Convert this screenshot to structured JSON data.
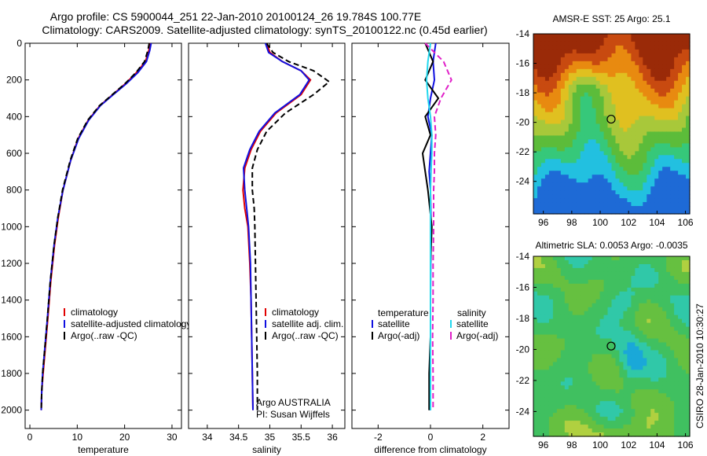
{
  "figure": {
    "title_line1": "Argo profile: CS 5900044_251 22-Jan-2010 20100124_26 19.784S 100.77E",
    "title_line2": "Climatology: CARS2009. Satellite-adjusted climatology: synTS_20100122.nc (0.45d earlier)",
    "credit": "CSIRO 28-Jan-2010 10:30:27",
    "float_id": "5900044",
    "profile_number": "251"
  },
  "colors": {
    "climatology": "#e00000",
    "satellite_temp": "#1010e0",
    "argo": "#000000",
    "satellite_sal": "#22d8ee",
    "argo_adj_sal": "#e020c8"
  },
  "chart_data": [
    {
      "type": "line",
      "name": "temperature",
      "xlabel": "temperature",
      "ylabel": "",
      "xlim": [
        -1,
        32
      ],
      "ylim": [
        2100,
        0
      ],
      "xticks": [
        "0",
        "10",
        "20",
        "30"
      ],
      "xtick_values": [
        0,
        10,
        20,
        30
      ],
      "yticks": [
        "0",
        "200",
        "400",
        "600",
        "800",
        "1000",
        "1200",
        "1400",
        "1600",
        "1800",
        "2000"
      ],
      "ytick_values": [
        0,
        200,
        400,
        600,
        800,
        1000,
        1200,
        1400,
        1600,
        1800,
        2000
      ],
      "legend": [
        "climatology",
        "satellite-adjusted climatology",
        "Argo(..raw -QC)"
      ],
      "series": [
        {
          "name": "climatology",
          "style": "solid",
          "color": "climatology",
          "x": [
            25.4,
            25.1,
            24.4,
            22.5,
            20.2,
            17.5,
            14.8,
            12.3,
            10.2,
            8.6,
            7.0,
            6.0,
            5.2,
            4.4,
            3.8,
            3.3,
            2.8,
            2.5,
            2.4
          ],
          "y": [
            0,
            40,
            100,
            160,
            220,
            280,
            340,
            420,
            520,
            640,
            800,
            950,
            1100,
            1300,
            1500,
            1650,
            1800,
            1900,
            2000
          ]
        },
        {
          "name": "satellite-adjusted climatology",
          "style": "solid",
          "color": "satellite_temp",
          "x": [
            25.6,
            25.3,
            24.6,
            22.8,
            20.4,
            17.6,
            14.9,
            12.4,
            10.3,
            8.6,
            7.0,
            5.9,
            5.1,
            4.3,
            3.7,
            3.2,
            2.7,
            2.5,
            2.4
          ],
          "y": [
            0,
            40,
            100,
            160,
            220,
            280,
            340,
            420,
            520,
            640,
            800,
            950,
            1100,
            1300,
            1500,
            1650,
            1800,
            1900,
            2000
          ]
        },
        {
          "name": "Argo(..raw -QC)",
          "style": "dashed",
          "color": "argo",
          "x": [
            25.2,
            24.9,
            24.2,
            22.4,
            20.1,
            17.4,
            14.7,
            12.2,
            10.1,
            8.5,
            6.9,
            5.9,
            5.1,
            4.3,
            3.7,
            3.2,
            2.7,
            2.5,
            2.4
          ],
          "y": [
            0,
            40,
            100,
            160,
            220,
            280,
            340,
            420,
            520,
            640,
            800,
            950,
            1100,
            1300,
            1500,
            1650,
            1800,
            1900,
            2000
          ]
        }
      ]
    },
    {
      "type": "line",
      "name": "salinity",
      "xlabel": "salinity",
      "xlim": [
        33.7,
        36.2
      ],
      "ylim": [
        2100,
        0
      ],
      "xticks": [
        "34",
        "34.5",
        "35",
        "35.5",
        "36"
      ],
      "xtick_values": [
        34,
        34.5,
        35,
        35.5,
        36
      ],
      "legend": [
        "climatology",
        "satellite adj. clim.",
        "Argo(..raw -QC)"
      ],
      "annotation": [
        "Argo AUSTRALIA",
        "PI: Susan Wijffels"
      ],
      "series": [
        {
          "name": "climatology",
          "style": "solid",
          "color": "climatology",
          "x": [
            34.95,
            35.0,
            35.2,
            35.5,
            35.65,
            35.5,
            35.1,
            34.85,
            34.7,
            34.6,
            34.57,
            34.6,
            34.65,
            34.68,
            34.7,
            34.71,
            34.72,
            34.73
          ],
          "y": [
            0,
            50,
            100,
            150,
            200,
            280,
            380,
            480,
            580,
            680,
            800,
            900,
            1000,
            1200,
            1400,
            1600,
            1800,
            2000
          ]
        },
        {
          "name": "satellite adj. clim.",
          "style": "solid",
          "color": "satellite_temp",
          "x": [
            34.93,
            34.98,
            35.2,
            35.5,
            35.63,
            35.48,
            35.08,
            34.83,
            34.68,
            34.58,
            34.6,
            34.63,
            34.66,
            34.69,
            34.7,
            34.71,
            34.72,
            34.73
          ],
          "y": [
            0,
            50,
            100,
            150,
            200,
            280,
            380,
            480,
            580,
            680,
            800,
            900,
            1000,
            1200,
            1400,
            1600,
            1800,
            2000
          ]
        },
        {
          "name": "Argo(..raw -QC)",
          "style": "dashed",
          "color": "argo",
          "x": [
            34.95,
            35.05,
            35.3,
            35.7,
            35.95,
            35.7,
            35.25,
            34.95,
            34.8,
            34.72,
            34.72,
            34.75,
            34.76,
            34.77,
            34.78,
            34.79,
            34.8,
            34.8
          ],
          "y": [
            0,
            50,
            100,
            150,
            210,
            280,
            380,
            480,
            580,
            680,
            800,
            900,
            1000,
            1200,
            1400,
            1600,
            1800,
            2000
          ]
        }
      ]
    },
    {
      "type": "line",
      "name": "difference",
      "xlabel": "difference from climatology",
      "xlim": [
        -3,
        3
      ],
      "ylim": [
        2100,
        0
      ],
      "xticks": [
        "-2",
        "0",
        "2"
      ],
      "xtick_values": [
        -2,
        0,
        2
      ],
      "legend_temp_header": "temperature",
      "legend_sal_header": "salinity",
      "legend_temp": [
        "satellite",
        "Argo(-adj)"
      ],
      "legend_sal": [
        "satellite",
        "Argo(-adj)"
      ],
      "series": [
        {
          "name": "temperature satellite",
          "style": "solid",
          "color": "satellite_temp",
          "x": [
            0.2,
            0.1,
            0.15,
            0.0,
            -0.1,
            0.05,
            0.0,
            -0.05,
            0.0,
            0.02,
            0.01,
            0.0,
            0.0,
            0.0,
            0.0
          ],
          "y": [
            0,
            100,
            200,
            300,
            400,
            500,
            600,
            700,
            800,
            1000,
            1200,
            1400,
            1600,
            1800,
            2000
          ]
        },
        {
          "name": "temperature Argo(-adj)",
          "style": "solid",
          "color": "argo",
          "x": [
            -0.2,
            0.1,
            -0.2,
            0.3,
            -0.2,
            0.0,
            -0.3,
            -0.2,
            -0.1,
            0.05,
            0.0,
            0.0,
            0.0,
            -0.05,
            -0.05
          ],
          "y": [
            0,
            100,
            200,
            300,
            400,
            500,
            600,
            700,
            800,
            1000,
            1200,
            1400,
            1600,
            1800,
            2000
          ]
        },
        {
          "name": "salinity satellite",
          "style": "solid",
          "color": "satellite_sal",
          "x": [
            0.0,
            -0.1,
            -0.15,
            -0.1,
            0.0,
            0.05,
            0.05,
            0.02,
            0.0,
            0.0,
            0.0,
            0.0,
            0.0,
            0.0,
            0.0
          ],
          "y": [
            0,
            100,
            200,
            300,
            400,
            500,
            600,
            700,
            800,
            1000,
            1200,
            1400,
            1600,
            1800,
            2000
          ]
        },
        {
          "name": "salinity Argo(-adj)",
          "style": "dashed",
          "color": "argo_adj_sal",
          "x": [
            -0.2,
            0.5,
            0.8,
            0.4,
            0.15,
            0.2,
            0.15,
            0.15,
            0.12,
            0.12,
            0.1,
            0.1,
            0.08,
            0.1,
            0.1
          ],
          "y": [
            0,
            100,
            200,
            300,
            400,
            500,
            600,
            700,
            800,
            1000,
            1200,
            1400,
            1600,
            1800,
            2000
          ]
        }
      ]
    },
    {
      "type": "heatmap",
      "name": "sst-map",
      "title": "AMSR-E SST: 25 Argo: 25.1",
      "xlim": [
        95.3,
        106.3
      ],
      "ylim": [
        -26.2,
        -14
      ],
      "xticks": [
        "96",
        "98",
        "100",
        "102",
        "104",
        "106"
      ],
      "xtick_values": [
        96,
        98,
        100,
        102,
        104,
        106
      ],
      "yticks": [
        "-14",
        "-16",
        "-18",
        "-20",
        "-22",
        "-24"
      ],
      "ytick_values": [
        -14,
        -16,
        -18,
        -20,
        -22,
        -24
      ],
      "marker": {
        "lon": 100.77,
        "lat": -19.784
      },
      "palette": [
        "#1e6ad6",
        "#22c0e0",
        "#36c87a",
        "#5cbc3a",
        "#a8c83a",
        "#e0c020",
        "#e88a10",
        "#c84a10",
        "#9a2a08"
      ]
    },
    {
      "type": "heatmap",
      "name": "sla-map",
      "title": "Altimetric SLA: 0.0053 Argo: -0.0035",
      "xlim": [
        95.3,
        106.3
      ],
      "ylim": [
        -25.6,
        -14
      ],
      "xticks": [
        "96",
        "98",
        "100",
        "102",
        "104",
        "106"
      ],
      "xtick_values": [
        96,
        98,
        100,
        102,
        104,
        106
      ],
      "yticks": [
        "-14",
        "-16",
        "-18",
        "-20",
        "-22",
        "-24"
      ],
      "ytick_values": [
        -14,
        -16,
        -18,
        -20,
        -22,
        -24
      ],
      "marker": {
        "lon": 100.77,
        "lat": -19.784
      },
      "palette": [
        "#1aa8d8",
        "#30c8a8",
        "#40c060",
        "#66c040",
        "#b0d040",
        "#e0e020"
      ]
    }
  ]
}
